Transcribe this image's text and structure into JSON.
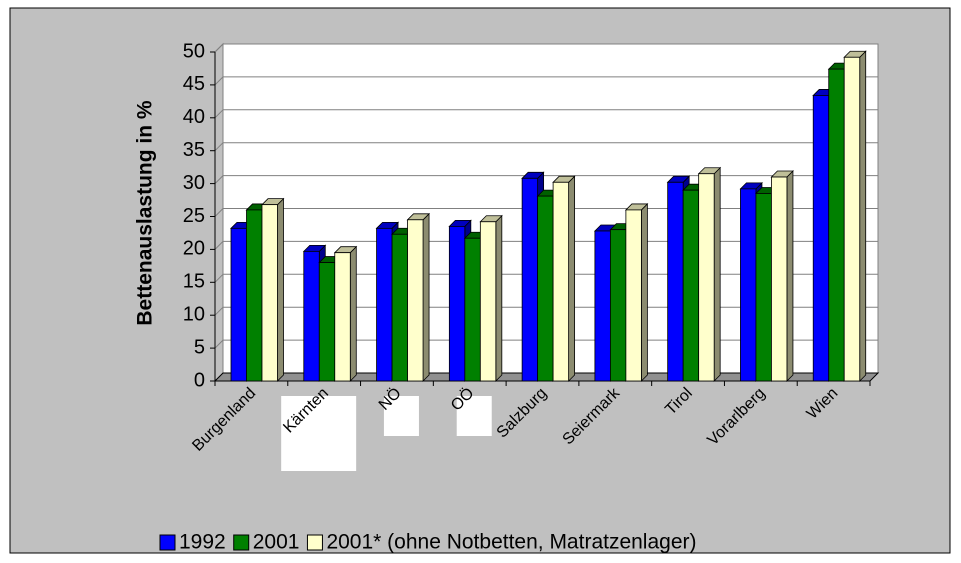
{
  "chart_data": {
    "type": "bar3d",
    "y_label": "Bettenauslastung in %",
    "categories": [
      "Burgenland",
      "Kärnten",
      "NÖ",
      "OÖ",
      "Salzburg",
      "Seiermark",
      "Tirol",
      "Vorarlberg",
      "Wien"
    ],
    "series": [
      {
        "name": "1992",
        "color": "#0000ff",
        "values": [
          23.2,
          19.7,
          23.2,
          23.5,
          30.8,
          22.8,
          30.2,
          29.2,
          43.4
        ]
      },
      {
        "name": "2001",
        "color": "#008000",
        "values": [
          26,
          18,
          22.3,
          21.7,
          28.1,
          23,
          29,
          28.5,
          47.4
        ]
      },
      {
        "name": "2001* (ohne Notbetten, Matratzenlager)",
        "color": "#ffffcc",
        "values": [
          26.8,
          19.5,
          24.5,
          24.2,
          30.2,
          26,
          31.5,
          31,
          49.2
        ]
      }
    ],
    "ylim": [
      0,
      50
    ],
    "yticks": [
      0,
      5,
      10,
      15,
      20,
      25,
      30,
      35,
      40,
      45,
      50
    ],
    "grid": true
  }
}
